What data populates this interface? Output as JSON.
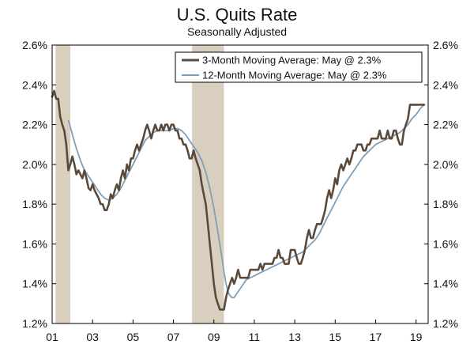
{
  "chart_data": {
    "type": "line",
    "title": "U.S. Quits Rate",
    "subtitle": "Seasonally Adjusted",
    "x_range": [
      2001.0,
      2019.6
    ],
    "ylim": [
      1.2,
      2.6
    ],
    "y_ticks": [
      {
        "value": 1.2,
        "label": "1.2%"
      },
      {
        "value": 1.4,
        "label": "1.4%"
      },
      {
        "value": 1.6,
        "label": "1.6%"
      },
      {
        "value": 1.8,
        "label": "1.8%"
      },
      {
        "value": 2.0,
        "label": "2.0%"
      },
      {
        "value": 2.2,
        "label": "2.2%"
      },
      {
        "value": 2.4,
        "label": "2.4%"
      },
      {
        "value": 2.6,
        "label": "2.6%"
      }
    ],
    "x_ticks": [
      {
        "value": 2001,
        "label": "01"
      },
      {
        "value": 2003,
        "label": "03"
      },
      {
        "value": 2005,
        "label": "05"
      },
      {
        "value": 2007,
        "label": "07"
      },
      {
        "value": 2009,
        "label": "09"
      },
      {
        "value": 2011,
        "label": "11"
      },
      {
        "value": 2013,
        "label": "13"
      },
      {
        "value": 2015,
        "label": "15"
      },
      {
        "value": 2017,
        "label": "17"
      },
      {
        "value": 2019,
        "label": "19"
      }
    ],
    "recessions": [
      {
        "start": 2001.17,
        "end": 2001.9
      },
      {
        "start": 2007.92,
        "end": 2009.5
      }
    ],
    "legend_position": "top-right",
    "colors": {
      "avg3": "#5a4a3c",
      "avg12": "#7f9fb8",
      "recession": "#d9cfbf"
    },
    "series": [
      {
        "name": "3-Month Moving Average: May @ 2.3%",
        "key": "avg3",
        "points": [
          [
            2001.0,
            2.34
          ],
          [
            2001.1,
            2.37
          ],
          [
            2001.2,
            2.33
          ],
          [
            2001.3,
            2.33
          ],
          [
            2001.4,
            2.24
          ],
          [
            2001.5,
            2.2
          ],
          [
            2001.6,
            2.17
          ],
          [
            2001.7,
            2.1
          ],
          [
            2001.8,
            1.97
          ],
          [
            2001.9,
            2.0
          ],
          [
            2002.0,
            2.04
          ],
          [
            2002.1,
            2.0
          ],
          [
            2002.2,
            1.95
          ],
          [
            2002.3,
            1.97
          ],
          [
            2002.4,
            1.95
          ],
          [
            2002.5,
            1.93
          ],
          [
            2002.6,
            1.97
          ],
          [
            2002.7,
            1.93
          ],
          [
            2002.8,
            1.88
          ],
          [
            2002.9,
            1.87
          ],
          [
            2003.0,
            1.9
          ],
          [
            2003.1,
            1.87
          ],
          [
            2003.2,
            1.85
          ],
          [
            2003.3,
            1.83
          ],
          [
            2003.4,
            1.8
          ],
          [
            2003.5,
            1.8
          ],
          [
            2003.6,
            1.77
          ],
          [
            2003.7,
            1.77
          ],
          [
            2003.8,
            1.8
          ],
          [
            2003.9,
            1.85
          ],
          [
            2004.0,
            1.83
          ],
          [
            2004.1,
            1.87
          ],
          [
            2004.2,
            1.9
          ],
          [
            2004.3,
            1.87
          ],
          [
            2004.4,
            1.93
          ],
          [
            2004.5,
            1.97
          ],
          [
            2004.6,
            1.93
          ],
          [
            2004.7,
            2.0
          ],
          [
            2004.8,
            1.97
          ],
          [
            2004.9,
            2.03
          ],
          [
            2005.0,
            2.03
          ],
          [
            2005.1,
            2.07
          ],
          [
            2005.2,
            2.1
          ],
          [
            2005.3,
            2.07
          ],
          [
            2005.4,
            2.1
          ],
          [
            2005.5,
            2.13
          ],
          [
            2005.6,
            2.17
          ],
          [
            2005.7,
            2.2
          ],
          [
            2005.8,
            2.17
          ],
          [
            2005.9,
            2.13
          ],
          [
            2006.0,
            2.17
          ],
          [
            2006.1,
            2.2
          ],
          [
            2006.2,
            2.17
          ],
          [
            2006.3,
            2.17
          ],
          [
            2006.4,
            2.2
          ],
          [
            2006.5,
            2.17
          ],
          [
            2006.6,
            2.2
          ],
          [
            2006.7,
            2.2
          ],
          [
            2006.8,
            2.17
          ],
          [
            2006.9,
            2.2
          ],
          [
            2007.0,
            2.2
          ],
          [
            2007.1,
            2.17
          ],
          [
            2007.2,
            2.17
          ],
          [
            2007.3,
            2.13
          ],
          [
            2007.4,
            2.13
          ],
          [
            2007.5,
            2.1
          ],
          [
            2007.6,
            2.1
          ],
          [
            2007.7,
            2.07
          ],
          [
            2007.8,
            2.03
          ],
          [
            2007.9,
            2.03
          ],
          [
            2008.0,
            2.07
          ],
          [
            2008.1,
            2.03
          ],
          [
            2008.2,
            2.0
          ],
          [
            2008.3,
            1.97
          ],
          [
            2008.4,
            1.9
          ],
          [
            2008.5,
            1.85
          ],
          [
            2008.6,
            1.8
          ],
          [
            2008.7,
            1.7
          ],
          [
            2008.8,
            1.6
          ],
          [
            2008.9,
            1.5
          ],
          [
            2009.0,
            1.4
          ],
          [
            2009.1,
            1.33
          ],
          [
            2009.2,
            1.3
          ],
          [
            2009.3,
            1.27
          ],
          [
            2009.4,
            1.27
          ],
          [
            2009.5,
            1.27
          ],
          [
            2009.6,
            1.33
          ],
          [
            2009.7,
            1.37
          ],
          [
            2009.8,
            1.4
          ],
          [
            2009.9,
            1.43
          ],
          [
            2010.0,
            1.4
          ],
          [
            2010.1,
            1.43
          ],
          [
            2010.2,
            1.47
          ],
          [
            2010.3,
            1.43
          ],
          [
            2010.4,
            1.43
          ],
          [
            2010.5,
            1.43
          ],
          [
            2010.6,
            1.43
          ],
          [
            2010.7,
            1.43
          ],
          [
            2010.8,
            1.47
          ],
          [
            2010.9,
            1.47
          ],
          [
            2011.0,
            1.47
          ],
          [
            2011.1,
            1.47
          ],
          [
            2011.2,
            1.47
          ],
          [
            2011.3,
            1.5
          ],
          [
            2011.4,
            1.47
          ],
          [
            2011.5,
            1.5
          ],
          [
            2011.6,
            1.5
          ],
          [
            2011.7,
            1.5
          ],
          [
            2011.8,
            1.5
          ],
          [
            2011.9,
            1.5
          ],
          [
            2012.0,
            1.53
          ],
          [
            2012.1,
            1.53
          ],
          [
            2012.2,
            1.57
          ],
          [
            2012.3,
            1.53
          ],
          [
            2012.4,
            1.53
          ],
          [
            2012.5,
            1.5
          ],
          [
            2012.6,
            1.5
          ],
          [
            2012.7,
            1.5
          ],
          [
            2012.8,
            1.57
          ],
          [
            2012.9,
            1.57
          ],
          [
            2013.0,
            1.57
          ],
          [
            2013.1,
            1.53
          ],
          [
            2013.2,
            1.5
          ],
          [
            2013.3,
            1.5
          ],
          [
            2013.4,
            1.53
          ],
          [
            2013.5,
            1.57
          ],
          [
            2013.6,
            1.63
          ],
          [
            2013.7,
            1.67
          ],
          [
            2013.8,
            1.63
          ],
          [
            2013.9,
            1.63
          ],
          [
            2014.0,
            1.67
          ],
          [
            2014.1,
            1.7
          ],
          [
            2014.2,
            1.7
          ],
          [
            2014.3,
            1.7
          ],
          [
            2014.4,
            1.73
          ],
          [
            2014.5,
            1.77
          ],
          [
            2014.6,
            1.83
          ],
          [
            2014.7,
            1.87
          ],
          [
            2014.8,
            1.83
          ],
          [
            2014.9,
            1.87
          ],
          [
            2015.0,
            1.93
          ],
          [
            2015.1,
            1.9
          ],
          [
            2015.2,
            1.97
          ],
          [
            2015.3,
            2.0
          ],
          [
            2015.4,
            1.97
          ],
          [
            2015.5,
            2.0
          ],
          [
            2015.6,
            2.03
          ],
          [
            2015.7,
            2.0
          ],
          [
            2015.8,
            2.03
          ],
          [
            2015.9,
            2.07
          ],
          [
            2016.0,
            2.07
          ],
          [
            2016.1,
            2.1
          ],
          [
            2016.2,
            2.1
          ],
          [
            2016.3,
            2.1
          ],
          [
            2016.4,
            2.07
          ],
          [
            2016.5,
            2.07
          ],
          [
            2016.6,
            2.1
          ],
          [
            2016.7,
            2.1
          ],
          [
            2016.8,
            2.13
          ],
          [
            2016.9,
            2.13
          ],
          [
            2017.0,
            2.13
          ],
          [
            2017.1,
            2.13
          ],
          [
            2017.2,
            2.17
          ],
          [
            2017.3,
            2.13
          ],
          [
            2017.4,
            2.13
          ],
          [
            2017.5,
            2.13
          ],
          [
            2017.6,
            2.17
          ],
          [
            2017.7,
            2.13
          ],
          [
            2017.8,
            2.13
          ],
          [
            2017.9,
            2.17
          ],
          [
            2018.0,
            2.17
          ],
          [
            2018.1,
            2.13
          ],
          [
            2018.2,
            2.1
          ],
          [
            2018.3,
            2.1
          ],
          [
            2018.4,
            2.17
          ],
          [
            2018.5,
            2.2
          ],
          [
            2018.6,
            2.23
          ],
          [
            2018.7,
            2.3
          ],
          [
            2018.8,
            2.3
          ],
          [
            2018.9,
            2.3
          ],
          [
            2019.0,
            2.3
          ],
          [
            2019.1,
            2.3
          ],
          [
            2019.2,
            2.3
          ],
          [
            2019.3,
            2.3
          ],
          [
            2019.4,
            2.3
          ]
        ]
      },
      {
        "name": "12-Month Moving Average: May @ 2.3%",
        "key": "avg12",
        "points": [
          [
            2001.8,
            2.22
          ],
          [
            2001.9,
            2.19
          ],
          [
            2002.0,
            2.15
          ],
          [
            2002.2,
            2.08
          ],
          [
            2002.4,
            2.02
          ],
          [
            2002.6,
            1.97
          ],
          [
            2002.8,
            1.94
          ],
          [
            2003.0,
            1.91
          ],
          [
            2003.2,
            1.88
          ],
          [
            2003.4,
            1.85
          ],
          [
            2003.6,
            1.83
          ],
          [
            2003.8,
            1.82
          ],
          [
            2004.0,
            1.83
          ],
          [
            2004.2,
            1.85
          ],
          [
            2004.4,
            1.88
          ],
          [
            2004.6,
            1.92
          ],
          [
            2004.8,
            1.96
          ],
          [
            2005.0,
            2.0
          ],
          [
            2005.2,
            2.04
          ],
          [
            2005.4,
            2.08
          ],
          [
            2005.6,
            2.12
          ],
          [
            2005.8,
            2.14
          ],
          [
            2006.0,
            2.16
          ],
          [
            2006.2,
            2.17
          ],
          [
            2006.4,
            2.17
          ],
          [
            2006.6,
            2.17
          ],
          [
            2006.8,
            2.17
          ],
          [
            2007.0,
            2.18
          ],
          [
            2007.2,
            2.18
          ],
          [
            2007.4,
            2.17
          ],
          [
            2007.6,
            2.15
          ],
          [
            2007.8,
            2.12
          ],
          [
            2008.0,
            2.09
          ],
          [
            2008.2,
            2.06
          ],
          [
            2008.4,
            2.02
          ],
          [
            2008.6,
            1.96
          ],
          [
            2008.8,
            1.88
          ],
          [
            2009.0,
            1.78
          ],
          [
            2009.2,
            1.66
          ],
          [
            2009.4,
            1.53
          ],
          [
            2009.5,
            1.46
          ],
          [
            2009.6,
            1.4
          ],
          [
            2009.7,
            1.36
          ],
          [
            2009.8,
            1.34
          ],
          [
            2009.9,
            1.33
          ],
          [
            2010.0,
            1.33
          ],
          [
            2010.2,
            1.36
          ],
          [
            2010.4,
            1.39
          ],
          [
            2010.6,
            1.42
          ],
          [
            2010.8,
            1.43
          ],
          [
            2011.0,
            1.44
          ],
          [
            2011.2,
            1.45
          ],
          [
            2011.4,
            1.46
          ],
          [
            2011.6,
            1.47
          ],
          [
            2011.8,
            1.48
          ],
          [
            2012.0,
            1.49
          ],
          [
            2012.2,
            1.5
          ],
          [
            2012.4,
            1.51
          ],
          [
            2012.6,
            1.52
          ],
          [
            2012.8,
            1.53
          ],
          [
            2013.0,
            1.54
          ],
          [
            2013.2,
            1.55
          ],
          [
            2013.4,
            1.56
          ],
          [
            2013.6,
            1.58
          ],
          [
            2013.8,
            1.6
          ],
          [
            2014.0,
            1.62
          ],
          [
            2014.2,
            1.65
          ],
          [
            2014.4,
            1.69
          ],
          [
            2014.6,
            1.73
          ],
          [
            2014.8,
            1.77
          ],
          [
            2015.0,
            1.81
          ],
          [
            2015.2,
            1.85
          ],
          [
            2015.4,
            1.89
          ],
          [
            2015.6,
            1.92
          ],
          [
            2015.8,
            1.95
          ],
          [
            2016.0,
            1.98
          ],
          [
            2016.2,
            2.01
          ],
          [
            2016.4,
            2.04
          ],
          [
            2016.6,
            2.06
          ],
          [
            2016.8,
            2.08
          ],
          [
            2017.0,
            2.1
          ],
          [
            2017.2,
            2.11
          ],
          [
            2017.4,
            2.12
          ],
          [
            2017.6,
            2.13
          ],
          [
            2017.8,
            2.14
          ],
          [
            2018.0,
            2.15
          ],
          [
            2018.2,
            2.16
          ],
          [
            2018.4,
            2.18
          ],
          [
            2018.6,
            2.2
          ],
          [
            2018.8,
            2.23
          ],
          [
            2019.0,
            2.25
          ],
          [
            2019.2,
            2.28
          ],
          [
            2019.4,
            2.3
          ]
        ]
      }
    ]
  }
}
